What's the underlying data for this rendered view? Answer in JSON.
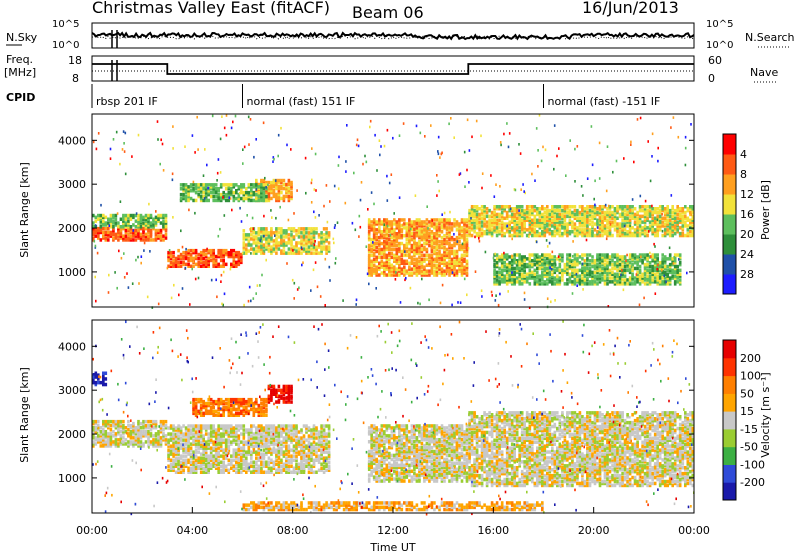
{
  "header": {
    "title": "Christmas Valley East (fitACF)",
    "beam": "Beam 06",
    "date": "16/Jun/2013"
  },
  "panels": {
    "nsky": {
      "left_label": "N.Sky",
      "right_label": "N.Search",
      "left_ticks": [
        "10^5",
        "10^0"
      ],
      "right_ticks": [
        "10^5",
        "10^0"
      ]
    },
    "freq": {
      "left_label_1": "Freq.",
      "left_label_2": "[MHz]",
      "right_label": "Nave",
      "left_ticks": [
        "18",
        "8"
      ],
      "right_ticks": [
        "60",
        "0"
      ]
    },
    "cpid": {
      "label": "CPID",
      "segments": [
        {
          "label": "rbsp 201 IF",
          "start_hour": 0,
          "end_hour": 6
        },
        {
          "label": "normal (fast) 151 IF",
          "start_hour": 6,
          "end_hour": 18
        },
        {
          "label": "normal (fast) -151 IF",
          "start_hour": 18,
          "end_hour": 24
        }
      ]
    }
  },
  "colors": {
    "power": [
      "#1d1dff",
      "#1f50a8",
      "#2e8f3a",
      "#5dbf5d",
      "#f2e23a",
      "#ff9f1f",
      "#ff5a14",
      "#ff0000"
    ],
    "velocity": [
      "#1a1aaa",
      "#2f4bd8",
      "#3cb043",
      "#9acd32",
      "#c8c8c8",
      "#ffa500",
      "#ff7f00",
      "#ff3300",
      "#e60000"
    ]
  },
  "chart_data": [
    {
      "type": "heatmap",
      "title": "Power",
      "ylabel": "Slant Range [km]",
      "ylim": [
        200,
        4600
      ],
      "yticks": [
        "1000",
        "2000",
        "3000",
        "4000"
      ],
      "xlim": [
        0,
        24
      ],
      "colorbar_label": "Power [dB]",
      "colorbar_ticks": [
        "4",
        "8",
        "12",
        "16",
        "20",
        "24",
        "28"
      ],
      "echo_bands": [
        {
          "t0": 0.0,
          "t1": 3.0,
          "r0": 1700,
          "r1": 2000,
          "level": 6
        },
        {
          "t0": 0.0,
          "t1": 3.0,
          "r0": 2000,
          "r1": 2300,
          "level": 3
        },
        {
          "t0": 3.0,
          "t1": 6.0,
          "r0": 1100,
          "r1": 1500,
          "level": 6
        },
        {
          "t0": 6.0,
          "t1": 9.5,
          "r0": 1400,
          "r1": 2000,
          "level": 4
        },
        {
          "t0": 6.5,
          "t1": 8.0,
          "r0": 2600,
          "r1": 3100,
          "level": 5
        },
        {
          "t0": 3.5,
          "t1": 7.0,
          "r0": 2600,
          "r1": 3000,
          "level": 3
        },
        {
          "t0": 11.0,
          "t1": 15.0,
          "r0": 900,
          "r1": 2200,
          "level": 5
        },
        {
          "t0": 15.0,
          "t1": 24.0,
          "r0": 1800,
          "r1": 2500,
          "level": 4
        },
        {
          "t0": 16.0,
          "t1": 23.5,
          "r0": 700,
          "r1": 1400,
          "level": 3
        }
      ]
    },
    {
      "type": "heatmap",
      "title": "Velocity",
      "ylabel": "Slant Range [km]",
      "ylim": [
        200,
        4600
      ],
      "yticks": [
        "1000",
        "2000",
        "3000",
        "4000"
      ],
      "xlabel": "Time UT",
      "xlim": [
        0,
        24
      ],
      "xticks": [
        "00:00",
        "04:00",
        "08:00",
        "12:00",
        "16:00",
        "20:00",
        "00:00"
      ],
      "colorbar_label": "Velocity [m s⁻¹]",
      "colorbar_ticks": [
        "200",
        "100",
        "50",
        "15",
        "-15",
        "-50",
        "-100",
        "-200"
      ],
      "echo_bands": [
        {
          "t0": 0.0,
          "t1": 3.0,
          "r0": 1700,
          "r1": 2300,
          "level": 4
        },
        {
          "t0": 3.0,
          "t1": 9.5,
          "r0": 1100,
          "r1": 2200,
          "level": 4
        },
        {
          "t0": 7.0,
          "t1": 8.0,
          "r0": 2700,
          "r1": 3100,
          "level": 8
        },
        {
          "t0": 4.0,
          "t1": 7.0,
          "r0": 2400,
          "r1": 2800,
          "level": 6
        },
        {
          "t0": 11.0,
          "t1": 15.0,
          "r0": 900,
          "r1": 2200,
          "level": 4
        },
        {
          "t0": 15.0,
          "t1": 24.0,
          "r0": 800,
          "r1": 2500,
          "level": 4
        },
        {
          "t0": 0.0,
          "t1": 0.6,
          "r0": 3100,
          "r1": 3400,
          "level": 0
        },
        {
          "t0": 6.0,
          "t1": 18.0,
          "r0": 250,
          "r1": 450,
          "level": 5
        }
      ]
    }
  ]
}
